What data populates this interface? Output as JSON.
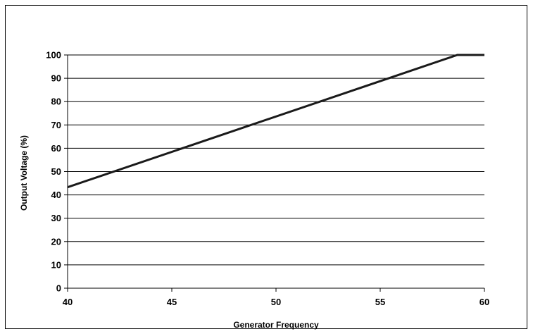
{
  "chart_data": {
    "type": "line",
    "title": "",
    "xlabel": "Generator Frequency",
    "ylabel": "Output Voltage (%)",
    "xlim": [
      40,
      60
    ],
    "ylim": [
      0,
      100
    ],
    "x_ticks": [
      40,
      45,
      50,
      55,
      60
    ],
    "y_ticks": [
      0,
      10,
      20,
      30,
      40,
      50,
      60,
      70,
      80,
      90,
      100
    ],
    "grid": "horizontal",
    "series": [
      {
        "x": [
          40,
          58.7,
          60
        ],
        "y": [
          43.3,
          100,
          100
        ],
        "color": "#1a1a1a"
      }
    ]
  }
}
